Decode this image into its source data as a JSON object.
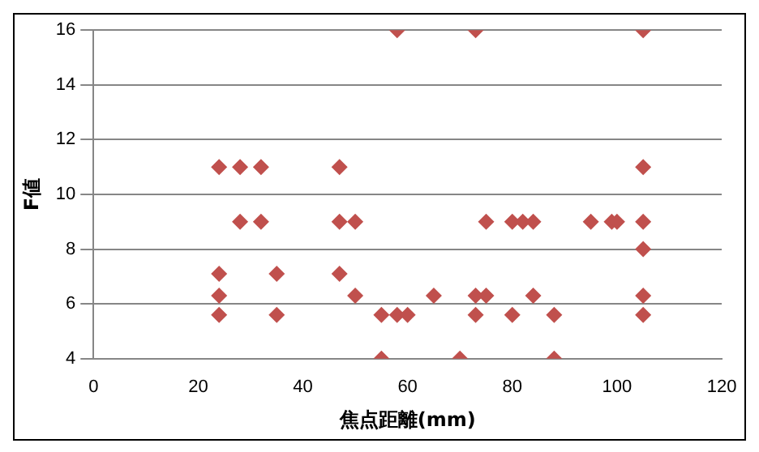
{
  "chart_data": {
    "type": "scatter",
    "xlabel": "焦点距離(mm)",
    "ylabel": "F値",
    "x": [
      58,
      73,
      105,
      24,
      28,
      32,
      47,
      105,
      28,
      32,
      47,
      50,
      75,
      80,
      82,
      84,
      95,
      99,
      100,
      105,
      105,
      24,
      35,
      47,
      24,
      50,
      65,
      73,
      75,
      84,
      105,
      24,
      35,
      55,
      58,
      60,
      73,
      80,
      88,
      105,
      55,
      70,
      88
    ],
    "series": [
      {
        "color": "#c0504d",
        "values": [
          16,
          16,
          16,
          11,
          11,
          11,
          11,
          11,
          9,
          9,
          9,
          9,
          9,
          9,
          9,
          9,
          9,
          9,
          9,
          9,
          8,
          7.1,
          7.1,
          7.1,
          6.3,
          6.3,
          6.3,
          6.3,
          6.3,
          6.3,
          6.3,
          5.6,
          5.6,
          5.6,
          5.6,
          5.6,
          5.6,
          5.6,
          5.6,
          5.6,
          4,
          4,
          4
        ]
      }
    ],
    "xlim": [
      0,
      120
    ],
    "xticks": [
      0,
      20,
      40,
      60,
      80,
      100,
      120
    ],
    "ylim": [
      4,
      16
    ],
    "yticks": [
      4,
      6,
      8,
      10,
      12,
      14,
      16
    ],
    "grid": "y",
    "marker": "diamond"
  }
}
